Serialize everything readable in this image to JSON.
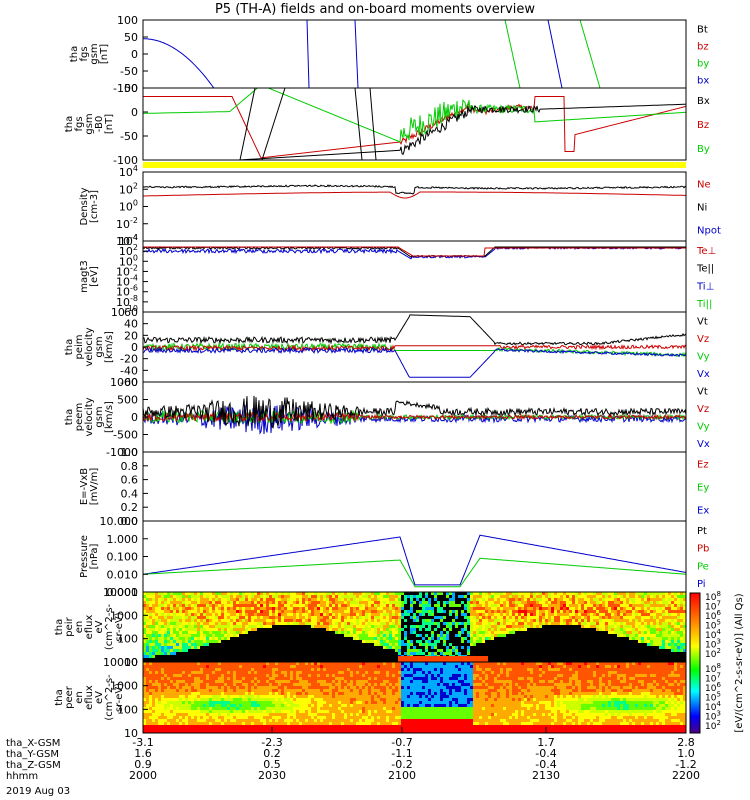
{
  "title": "P5 (TH-A) fields and on-board moments overview",
  "chart_data": [
    {
      "type": "line",
      "ylabel": [
        "tha",
        "fgs",
        "gsm",
        "[nT]"
      ],
      "ylim": [
        -100,
        100
      ],
      "yticks": [
        "100",
        "50",
        "0",
        "-50",
        "-100"
      ],
      "legend": [
        {
          "name": "Bt",
          "color": "#000000"
        },
        {
          "name": "bz",
          "color": "#cc0000"
        },
        {
          "name": "by",
          "color": "#00cc00"
        },
        {
          "name": "bx",
          "color": "#0000cc"
        }
      ]
    },
    {
      "type": "line",
      "ylabel": [
        "tha",
        "fgs",
        "gsm",
        "-B0",
        "[nT]"
      ],
      "ylim": [
        -120,
        50
      ],
      "yticks": [
        "50",
        "0",
        "-50",
        "-100"
      ],
      "legend": [
        {
          "name": "Bx",
          "color": "#000000"
        },
        {
          "name": "Bz",
          "color": "#cc0000"
        },
        {
          "name": "By",
          "color": "#00cc00"
        }
      ]
    },
    {
      "type": "line",
      "ylabel": [
        "Density",
        "[cm-3]"
      ],
      "ylim": [
        "10-4",
        "104"
      ],
      "yticks": [
        [
          "10",
          "4"
        ],
        [
          "10",
          "2"
        ],
        [
          "10",
          "0"
        ],
        [
          "10",
          "-2"
        ],
        [
          "10",
          "-4"
        ]
      ],
      "legend": [
        {
          "name": "Ne",
          "color": "#cc0000"
        },
        {
          "name": "Ni",
          "color": "#000000"
        },
        {
          "name": "Npot",
          "color": "#0000cc"
        }
      ]
    },
    {
      "type": "line",
      "ylabel": [
        "magt3",
        "[eV]"
      ],
      "yticks": [
        [
          "10",
          "4"
        ],
        [
          "10",
          "2"
        ],
        [
          "10",
          "0"
        ],
        [
          "10",
          "-2"
        ],
        [
          "10",
          "-4"
        ],
        [
          "10",
          "-6"
        ],
        [
          "10",
          "-8"
        ],
        [
          "10",
          "-10"
        ]
      ],
      "legend": [
        {
          "name": "Te⊥",
          "color": "#cc0000"
        },
        {
          "name": "Te||",
          "color": "#000000"
        },
        {
          "name": "Ti⊥",
          "color": "#0000cc"
        },
        {
          "name": "Ti||",
          "color": "#00cc00"
        }
      ]
    },
    {
      "type": "line",
      "ylabel": [
        "tha",
        "peim",
        "velocity",
        "gsm",
        "[km/s]"
      ],
      "ylim": [
        -60,
        60
      ],
      "yticks": [
        "60",
        "40",
        "20",
        "0",
        "-20",
        "-40",
        "-60"
      ],
      "legend": [
        {
          "name": "Vt",
          "color": "#000000"
        },
        {
          "name": "Vz",
          "color": "#cc0000"
        },
        {
          "name": "Vy",
          "color": "#00cc00"
        },
        {
          "name": "Vx",
          "color": "#0000cc"
        }
      ]
    },
    {
      "type": "line",
      "ylabel": [
        "tha",
        "peem",
        "velocity",
        "gsm",
        "[km/s]"
      ],
      "ylim": [
        -1000,
        1000
      ],
      "yticks": [
        "1000",
        "500",
        "0",
        "-500",
        "-1000"
      ],
      "legend": [
        {
          "name": "Vt",
          "color": "#000000"
        },
        {
          "name": "Vz",
          "color": "#cc0000"
        },
        {
          "name": "Vy",
          "color": "#00cc00"
        },
        {
          "name": "Vx",
          "color": "#0000cc"
        }
      ]
    },
    {
      "type": "line",
      "ylabel": [
        "E=-VxB",
        "[mV/m]"
      ],
      "ylim": [
        0,
        1
      ],
      "yticks": [
        "1.0",
        "0.8",
        "0.6",
        "0.4",
        "0.2",
        "0.0"
      ],
      "legend": [
        {
          "name": "Ez",
          "color": "#cc0000"
        },
        {
          "name": "Ey",
          "color": "#00cc00"
        },
        {
          "name": "Ex",
          "color": "#0000cc"
        }
      ]
    },
    {
      "type": "line",
      "ylabel": [
        "Pressure",
        "[nPa]"
      ],
      "ylim": [
        0.001,
        10
      ],
      "yticks": [
        "10.000",
        "1.000",
        "0.100",
        "0.010",
        "0.001"
      ],
      "legend": [
        {
          "name": "Pt",
          "color": "#000000"
        },
        {
          "name": "Pb",
          "color": "#cc0000"
        },
        {
          "name": "Pe",
          "color": "#00cc00"
        },
        {
          "name": "Pi",
          "color": "#0000cc"
        }
      ]
    },
    {
      "type": "heatmap",
      "ylabel": [
        "tha",
        "peir",
        "en",
        "eflux",
        "eV",
        "(cm^2-s-",
        "sr-eV)"
      ],
      "yticks": [
        "10000",
        "1000",
        "100",
        "10"
      ]
    },
    {
      "type": "heatmap",
      "ylabel": [
        "tha",
        "peer",
        "en",
        "eflux",
        "eV",
        "(cm^2-s-",
        "sr-eV)"
      ],
      "yticks": [
        "10000",
        "1000",
        "100",
        "10"
      ]
    }
  ],
  "colorbar": {
    "label": "[eV/(cm^2-s-sr-eV)] (All Qs)",
    "ticks": [
      [
        "10",
        "8"
      ],
      [
        "10",
        "7"
      ],
      [
        "10",
        "6"
      ],
      [
        "10",
        "5"
      ],
      [
        "10",
        "4"
      ],
      [
        "10",
        "3"
      ],
      [
        "10",
        "2"
      ]
    ]
  },
  "xaxis": {
    "rows": [
      {
        "label": "tha_X-GSM",
        "values": [
          "-3.1",
          "-2.3",
          "-0.7",
          "1.7",
          "2.8"
        ]
      },
      {
        "label": "tha_Y-GSM",
        "values": [
          "1.6",
          "0.2",
          "-1.1",
          "-0.4",
          "1.0"
        ]
      },
      {
        "label": "tha_Z-GSM",
        "values": [
          "0.9",
          "0.5",
          "-0.2",
          "-0.4",
          "-1.2"
        ]
      },
      {
        "label": "hhmm",
        "values": [
          "2000",
          "2030",
          "2100",
          "2130",
          "2200"
        ]
      }
    ],
    "date": "2019 Aug 03"
  }
}
